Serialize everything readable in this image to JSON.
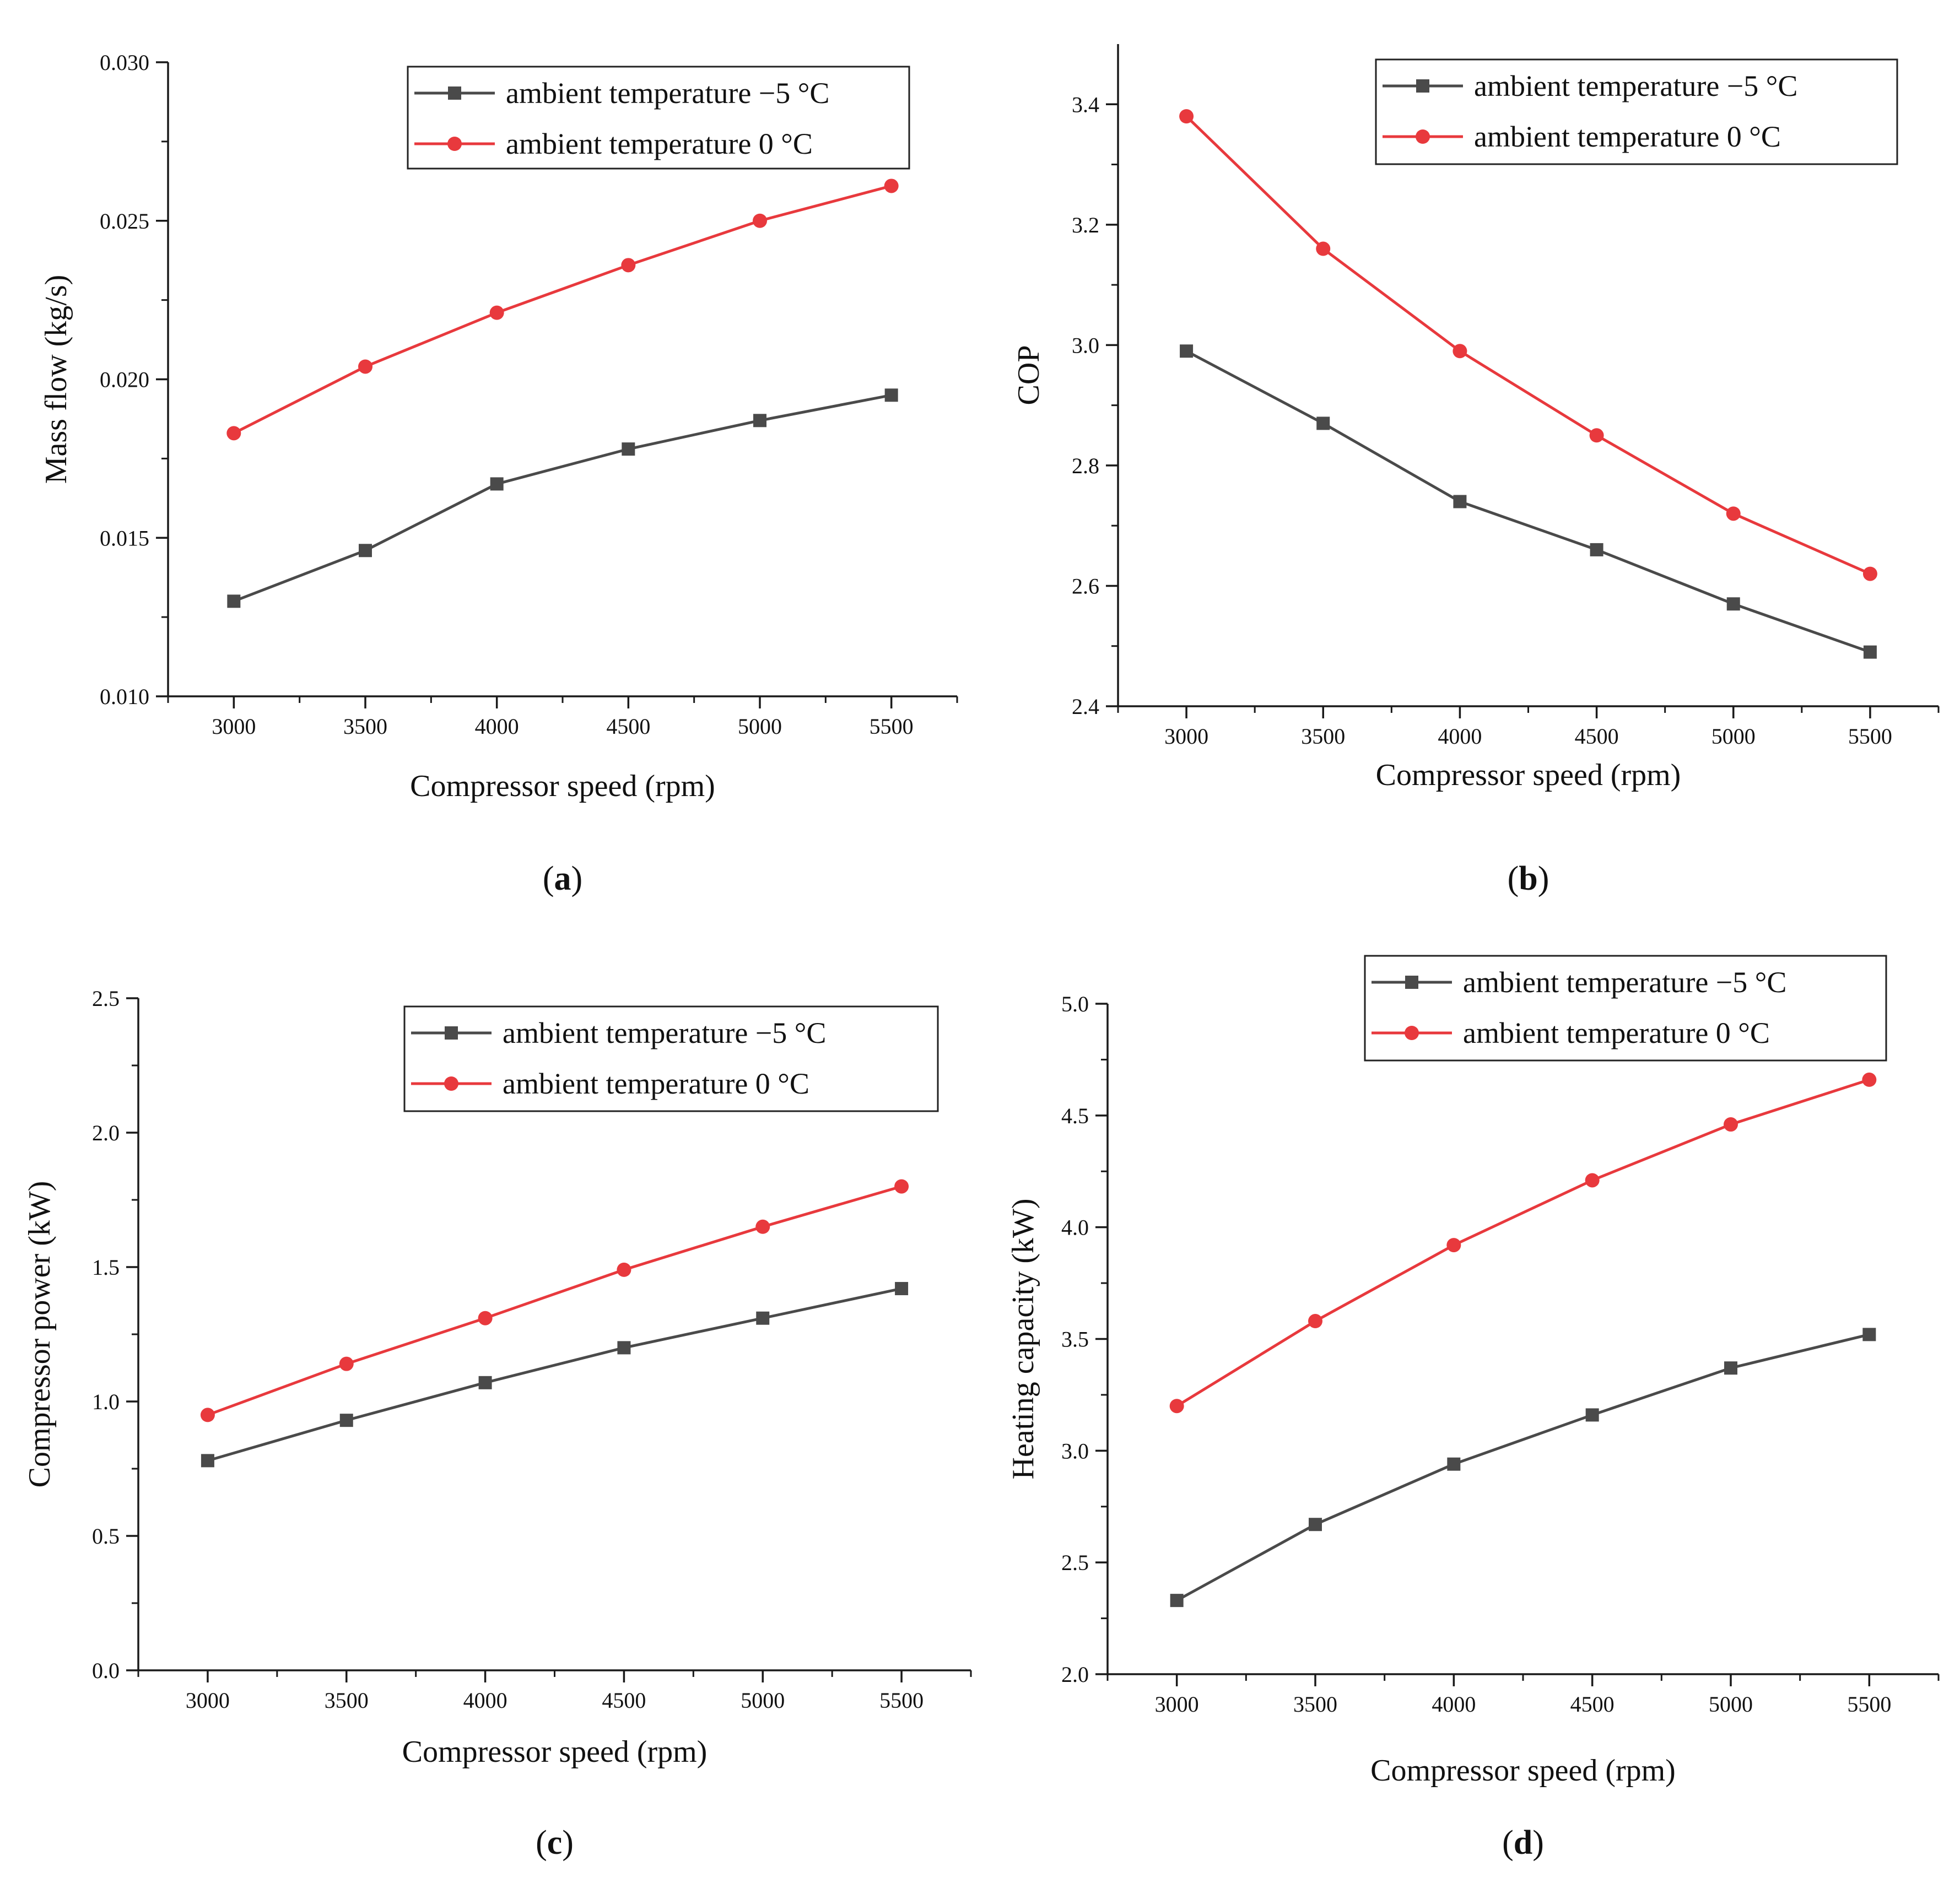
{
  "colors": {
    "series_minus5": "#4a4a4a",
    "series_0": "#e8393d",
    "axis": "#1a1a1a"
  },
  "legend": {
    "minus5_label": "ambient temperature −5 °C",
    "zero_label": "ambient temperature 0 °C"
  },
  "chart_data": [
    {
      "id": "a",
      "type": "line",
      "panel_label": "a",
      "xlabel": "Compressor speed (rpm)",
      "ylabel": "Mass flow (kg/s)",
      "x": [
        3000,
        3500,
        4000,
        4500,
        5000,
        5500
      ],
      "xlim": [
        2750,
        5750
      ],
      "ylim": [
        0.01,
        0.03
      ],
      "yticks": [
        0.01,
        0.015,
        0.02,
        0.025,
        0.03
      ],
      "ytick_decimals": 3,
      "legend_position": "top-right",
      "series": [
        {
          "name": "ambient temperature −5 °C",
          "marker": "square",
          "values": [
            0.013,
            0.0146,
            0.0167,
            0.0178,
            0.0187,
            0.0195
          ]
        },
        {
          "name": "ambient temperature 0 °C",
          "marker": "circle",
          "values": [
            0.0183,
            0.0204,
            0.0221,
            0.0236,
            0.025,
            0.0261
          ]
        }
      ]
    },
    {
      "id": "b",
      "type": "line",
      "panel_label": "b",
      "xlabel": "Compressor speed (rpm)",
      "ylabel": "COP",
      "x": [
        3000,
        3500,
        4000,
        4500,
        5000,
        5500
      ],
      "xlim": [
        2750,
        5750
      ],
      "ylim": [
        2.4,
        3.5
      ],
      "yticks": [
        2.4,
        2.6,
        2.8,
        3.0,
        3.2,
        3.4
      ],
      "ytick_decimals": 1,
      "legend_position": "top-right",
      "series": [
        {
          "name": "ambient temperature −5 °C",
          "marker": "square",
          "values": [
            2.99,
            2.87,
            2.74,
            2.66,
            2.57,
            2.49
          ]
        },
        {
          "name": "ambient temperature 0 °C",
          "marker": "circle",
          "values": [
            3.38,
            3.16,
            2.99,
            2.85,
            2.72,
            2.62
          ]
        }
      ]
    },
    {
      "id": "c",
      "type": "line",
      "panel_label": "c",
      "xlabel": "Compressor speed (rpm)",
      "ylabel": "Compressor power (kW)",
      "x": [
        3000,
        3500,
        4000,
        4500,
        5000,
        5500
      ],
      "xlim": [
        2750,
        5750
      ],
      "ylim": [
        0.0,
        2.5
      ],
      "yticks": [
        0.0,
        0.5,
        1.0,
        1.5,
        2.0,
        2.5
      ],
      "ytick_decimals": 1,
      "legend_position": "top-right",
      "series": [
        {
          "name": "ambient temperature −5 °C",
          "marker": "square",
          "values": [
            0.78,
            0.93,
            1.07,
            1.2,
            1.31,
            1.42
          ]
        },
        {
          "name": "ambient temperature 0 °C",
          "marker": "circle",
          "values": [
            0.95,
            1.14,
            1.31,
            1.49,
            1.65,
            1.8
          ]
        }
      ]
    },
    {
      "id": "d",
      "type": "line",
      "panel_label": "d",
      "xlabel": "Compressor speed (rpm)",
      "ylabel": "Heating capacity (kW)",
      "x": [
        3000,
        3500,
        4000,
        4500,
        5000,
        5500
      ],
      "xlim": [
        2750,
        5750
      ],
      "ylim": [
        2.0,
        5.0
      ],
      "yticks": [
        2.0,
        2.5,
        3.0,
        3.5,
        4.0,
        4.5,
        5.0
      ],
      "ytick_decimals": 1,
      "legend_position": "top-right",
      "series": [
        {
          "name": "ambient temperature −5 °C",
          "marker": "square",
          "values": [
            2.33,
            2.67,
            2.94,
            3.16,
            3.37,
            3.52
          ]
        },
        {
          "name": "ambient temperature 0 °C",
          "marker": "circle",
          "values": [
            3.2,
            3.58,
            3.92,
            4.21,
            4.46,
            4.66
          ]
        }
      ]
    }
  ]
}
